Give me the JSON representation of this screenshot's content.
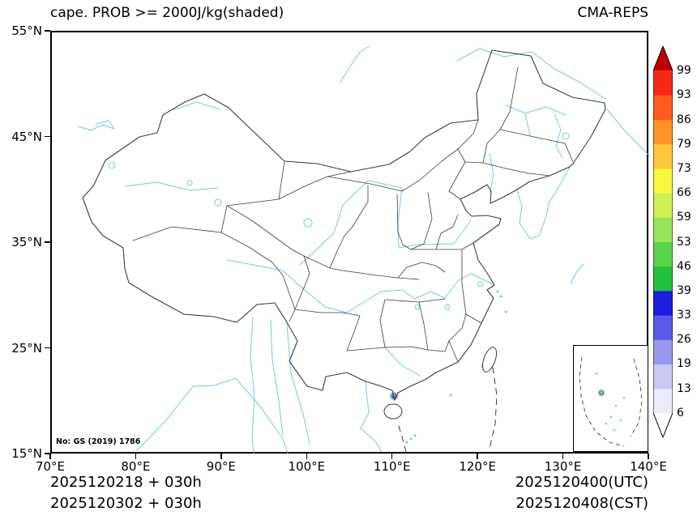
{
  "header": {
    "title": "cape. PROB >= 2000J/kg(shaded)",
    "model_label": "CMA-REPS"
  },
  "map": {
    "note": "No: GS (2019) 1786",
    "x_tick_labels": [
      "70°E",
      "80°E",
      "90°E",
      "100°E",
      "110°E",
      "120°E",
      "130°E",
      "140°E"
    ],
    "y_tick_labels": [
      "55°N",
      "45°N",
      "35°N",
      "25°N",
      "15°N"
    ]
  },
  "colorbar": {
    "tick_labels_bottom_to_top": [
      "6",
      "13",
      "19",
      "26",
      "33",
      "39",
      "46",
      "53",
      "59",
      "66",
      "73",
      "79",
      "86",
      "93",
      "99"
    ],
    "segment_colors_bottom_to_top": [
      "#ffffff",
      "#ebebfc",
      "#c8c8f4",
      "#9898ee",
      "#5a5ae8",
      "#1e1ee0",
      "#22c03c",
      "#5ad24b",
      "#96e45a",
      "#cdee55",
      "#f8f83c",
      "#ffc83c",
      "#ff9426",
      "#ff5c1e",
      "#f62814",
      "#c00000"
    ],
    "border_color": "#000000"
  },
  "footer": {
    "left_line1": "2025120218 + 030h",
    "left_line2": "2025120302 + 030h",
    "right_line1": "2025120400(UTC)",
    "right_line2": "2025120408(CST)"
  },
  "chart_data": {
    "type": "map",
    "title": "cape. PROB >= 2000J/kg(shaded)",
    "model": "CMA-REPS",
    "variable": "Probability of CAPE >= 2000 J/kg (shaded, %)",
    "lon_range_deg_e": [
      70,
      140
    ],
    "lat_range_deg_n": [
      15,
      55
    ],
    "probability_levels_percent": [
      6,
      13,
      19,
      26,
      33,
      39,
      46,
      53,
      59,
      66,
      73,
      79,
      86,
      93,
      99
    ],
    "init_time": "2025120218 + 030h (UTC) / 2025120302 + 030h (CST)",
    "valid_time": "2025120400(UTC) / 2025120408(CST)",
    "shaded_features": [
      {
        "approx_lon_e": 110.3,
        "approx_lat_n": 21.0,
        "max_level_percent": 39,
        "note": "small shaded spot near Leizhou Peninsula coast"
      },
      {
        "location": "inset South China Sea panel, small shaded spot",
        "max_level_percent": 39
      }
    ],
    "map_colors": {
      "political_borders": "#3c3c3c",
      "water_features": "#70cce0"
    }
  }
}
